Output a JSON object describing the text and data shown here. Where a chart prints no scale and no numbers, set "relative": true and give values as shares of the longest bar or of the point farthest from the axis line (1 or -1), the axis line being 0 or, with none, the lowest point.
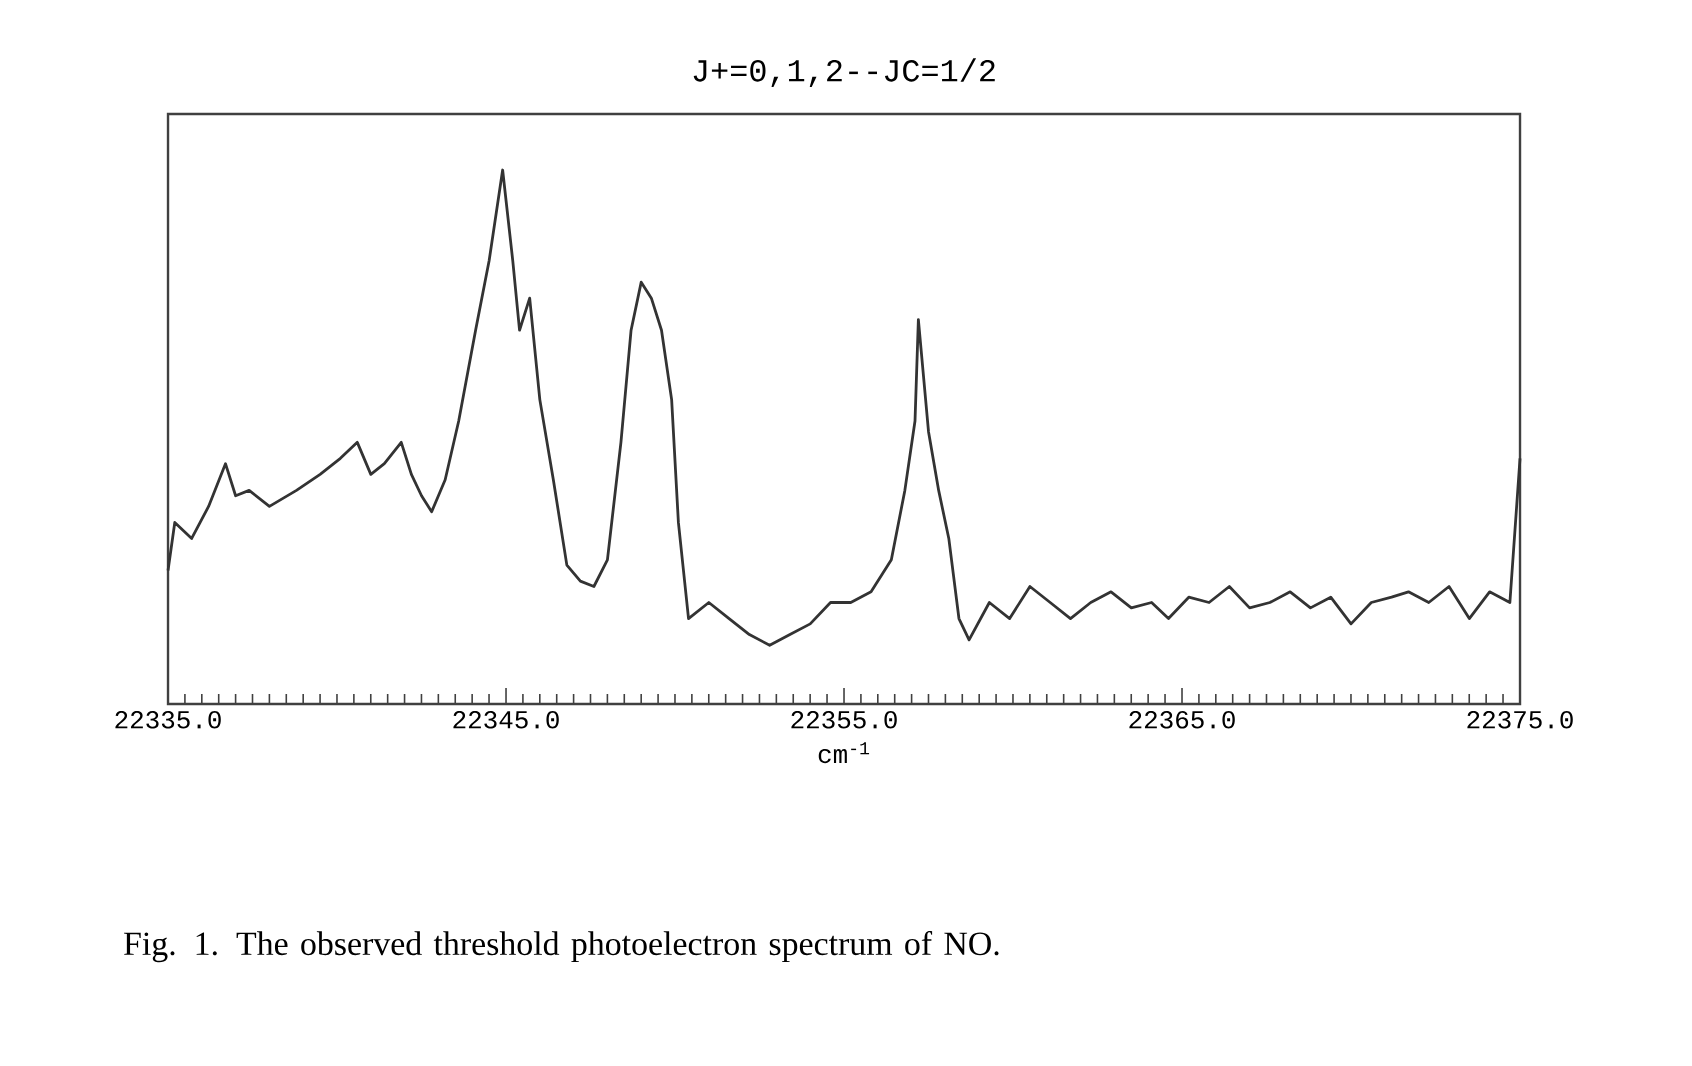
{
  "chart_data": {
    "type": "line",
    "title": "J+=0,1,2--JC=1/2",
    "xlabel": "cm$^{-1}$",
    "annotations": [
      "Fig. 1. The observed threshold photoelectron spectrum of NO."
    ],
    "relative": true,
    "color": "#333333",
    "xlim": [
      22335.0,
      22375.0
    ],
    "xticks": [
      {
        "value": 22335,
        "label": "22335.0"
      },
      {
        "value": 22345,
        "label": "22345.0"
      },
      {
        "value": 22355,
        "label": "22355.0"
      },
      {
        "value": 22365,
        "label": "22365.0"
      },
      {
        "value": 22375,
        "label": "22375.0"
      }
    ],
    "x": [
      22335.0,
      22335.2,
      22335.7,
      22336.2,
      22336.7,
      22337.0,
      22337.4,
      22338.0,
      22338.8,
      22339.5,
      22340.1,
      22340.6,
      22341.0,
      22341.4,
      22341.9,
      22342.2,
      22342.5,
      22342.8,
      22343.2,
      22343.6,
      22344.1,
      22344.5,
      22344.9,
      22345.2,
      22345.4,
      22345.7,
      22346.0,
      22346.4,
      22346.8,
      22347.2,
      22347.6,
      22348.0,
      22348.4,
      22348.7,
      22349.0,
      22349.3,
      22349.6,
      22349.9,
      22350.1,
      22350.4,
      22351.0,
      22351.6,
      22352.2,
      22352.8,
      22353.4,
      22354.0,
      22354.6,
      22355.2,
      22355.8,
      22356.4,
      22356.8,
      22357.1,
      22357.2,
      22357.5,
      22357.8,
      22358.1,
      22358.4,
      22358.7,
      22359.3,
      22359.9,
      22360.5,
      22361.1,
      22361.7,
      22362.3,
      22362.9,
      22363.5,
      22364.1,
      22364.6,
      22365.2,
      22365.8,
      22366.4,
      22367.0,
      22367.6,
      22368.2,
      22368.8,
      22369.4,
      22370.0,
      22370.6,
      22371.2,
      22371.7,
      22372.3,
      22372.9,
      22373.5,
      22374.1,
      22374.7,
      22375.0
    ],
    "values": [
      0.25,
      0.34,
      0.31,
      0.37,
      0.45,
      0.39,
      0.4,
      0.37,
      0.4,
      0.43,
      0.46,
      0.49,
      0.43,
      0.45,
      0.49,
      0.43,
      0.39,
      0.36,
      0.42,
      0.53,
      0.7,
      0.83,
      1.0,
      0.83,
      0.7,
      0.76,
      0.57,
      0.42,
      0.26,
      0.23,
      0.22,
      0.27,
      0.49,
      0.7,
      0.79,
      0.76,
      0.7,
      0.57,
      0.34,
      0.16,
      0.19,
      0.16,
      0.13,
      0.11,
      0.13,
      0.15,
      0.19,
      0.19,
      0.21,
      0.27,
      0.4,
      0.53,
      0.72,
      0.51,
      0.4,
      0.31,
      0.16,
      0.12,
      0.19,
      0.16,
      0.22,
      0.19,
      0.16,
      0.19,
      0.21,
      0.18,
      0.19,
      0.16,
      0.2,
      0.19,
      0.22,
      0.18,
      0.19,
      0.21,
      0.18,
      0.2,
      0.15,
      0.19,
      0.2,
      0.21,
      0.19,
      0.22,
      0.16,
      0.21,
      0.19,
      0.46
    ]
  }
}
